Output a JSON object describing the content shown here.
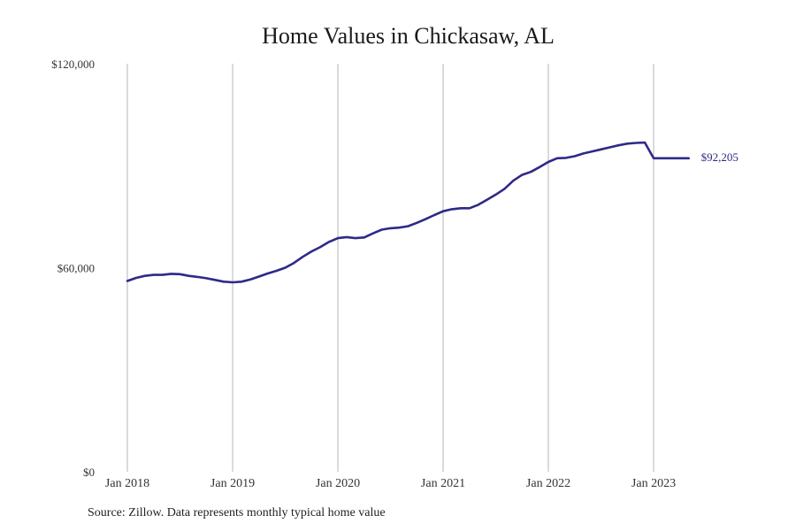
{
  "chart_data": {
    "type": "line",
    "title": "Home Values in Chickasaw, AL",
    "xlabel": "",
    "ylabel": "",
    "ylim": [
      0,
      120000
    ],
    "y_ticks": [
      0,
      60000,
      120000
    ],
    "y_tick_labels": [
      "$0",
      "$60,000",
      "$120,000"
    ],
    "x_ticks": [
      "2018-01",
      "2019-01",
      "2020-01",
      "2021-01",
      "2022-01",
      "2023-01"
    ],
    "x_tick_labels": [
      "Jan 2018",
      "Jan 2019",
      "Jan 2020",
      "Jan 2021",
      "Jan 2022",
      "Jan 2023"
    ],
    "x_range": [
      "2018-01",
      "2023-05"
    ],
    "grid": "vertical",
    "line_color": "#2e2a86",
    "end_label": "$92,205",
    "series": [
      {
        "x": [
          "2018-01",
          "2018-02",
          "2018-03",
          "2018-04",
          "2018-05",
          "2018-06",
          "2018-07",
          "2018-08",
          "2018-09",
          "2018-10",
          "2018-11",
          "2018-12",
          "2019-01",
          "2019-02",
          "2019-03",
          "2019-04",
          "2019-05",
          "2019-06",
          "2019-07",
          "2019-08",
          "2019-09",
          "2019-10",
          "2019-11",
          "2019-12",
          "2020-01",
          "2020-02",
          "2020-03",
          "2020-04",
          "2020-05",
          "2020-06",
          "2020-07",
          "2020-08",
          "2020-09",
          "2020-10",
          "2020-11",
          "2020-12",
          "2021-01",
          "2021-02",
          "2021-03",
          "2021-04",
          "2021-05",
          "2021-06",
          "2021-07",
          "2021-08",
          "2021-09",
          "2021-10",
          "2021-11",
          "2021-12",
          "2022-01",
          "2022-02",
          "2022-03",
          "2022-04",
          "2022-05",
          "2022-06",
          "2022-07",
          "2022-08",
          "2022-09",
          "2022-10",
          "2022-11",
          "2022-12",
          "2023-01",
          "2023-02",
          "2023-03",
          "2023-04",
          "2023-05"
        ],
        "values": [
          56100,
          57000,
          57600,
          57900,
          57900,
          58200,
          58100,
          57600,
          57300,
          56900,
          56400,
          55900,
          55700,
          55900,
          56500,
          57400,
          58300,
          59100,
          60000,
          61400,
          63200,
          64800,
          66100,
          67600,
          68700,
          69000,
          68700,
          68900,
          70100,
          71200,
          71600,
          71800,
          72200,
          73200,
          74300,
          75500,
          76600,
          77200,
          77500,
          77500,
          78500,
          80000,
          81500,
          83200,
          85600,
          87300,
          88200,
          89600,
          91100,
          92200,
          92300,
          92800,
          93600,
          94200,
          94800,
          95400,
          96000,
          96500,
          96700,
          96800,
          92205,
          92205,
          92205,
          92205,
          92205
        ]
      }
    ]
  },
  "source_note": "Source: Zillow. Data represents monthly typical home value"
}
